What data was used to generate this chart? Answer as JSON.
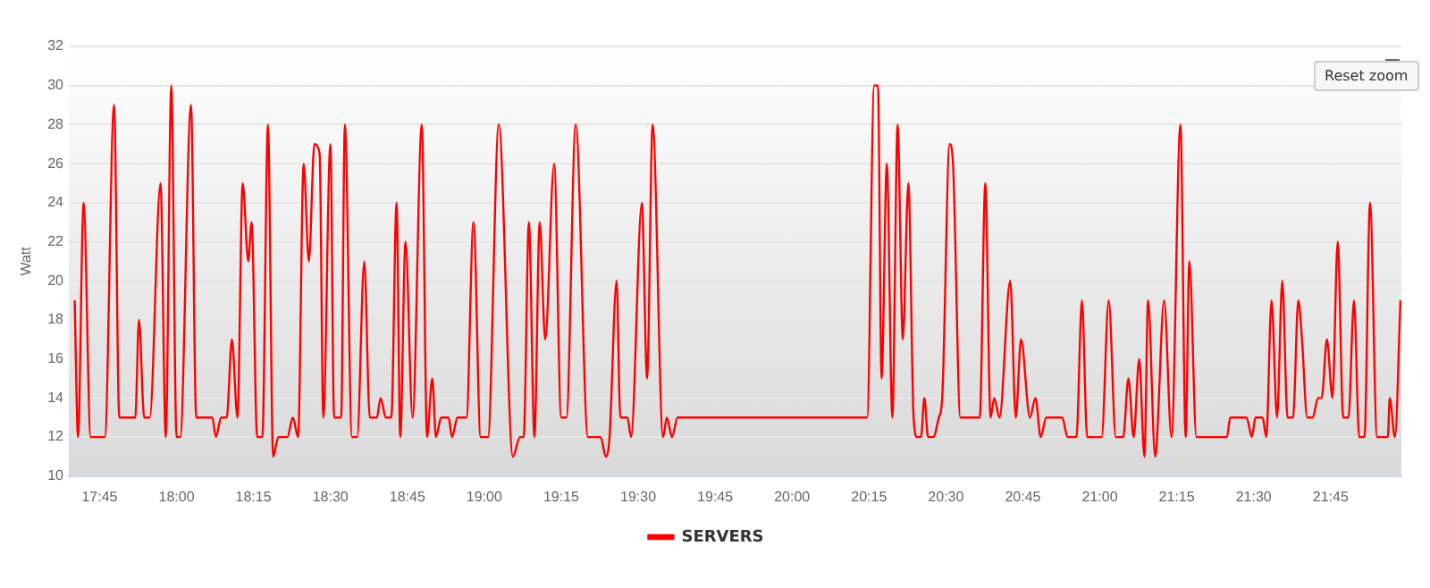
{
  "chart_data": {
    "type": "line",
    "ylabel": "Watt",
    "legend": "bottom",
    "grid": "y",
    "marker": "none",
    "line_style": "solid",
    "annotations": [
      "Reset zoom"
    ],
    "xlim": [
      17.65,
      21.98
    ],
    "ylim": [
      10,
      32
    ],
    "yticks": [
      10,
      12,
      14,
      16,
      18,
      20,
      22,
      24,
      26,
      28,
      30,
      32
    ],
    "xticks": [
      {
        "value": 17.75,
        "label": "17:45"
      },
      {
        "value": 18,
        "label": "18:00"
      },
      {
        "value": 18.25,
        "label": "18:15"
      },
      {
        "value": 18.5,
        "label": "18:30"
      },
      {
        "value": 18.75,
        "label": "18:45"
      },
      {
        "value": 19,
        "label": "19:00"
      },
      {
        "value": 19.25,
        "label": "19:15"
      },
      {
        "value": 19.5,
        "label": "19:30"
      },
      {
        "value": 19.75,
        "label": "19:45"
      },
      {
        "value": 20,
        "label": "20:00"
      },
      {
        "value": 20.25,
        "label": "20:15"
      },
      {
        "value": 20.5,
        "label": "20:30"
      },
      {
        "value": 20.75,
        "label": "20:45"
      },
      {
        "value": 21,
        "label": "21:00"
      },
      {
        "value": 21.25,
        "label": "21:15"
      },
      {
        "value": 21.5,
        "label": "21:30"
      },
      {
        "value": 21.75,
        "label": "21:45"
      }
    ],
    "series": [
      {
        "name": "SERVERS",
        "color": "#ff0000",
        "x": [
          17.669,
          17.68,
          17.698,
          17.721,
          17.767,
          17.797,
          17.814,
          17.866,
          17.878,
          17.895,
          17.913,
          17.948,
          17.965,
          17.983,
          18.0,
          18.012,
          18.047,
          18.064,
          18.116,
          18.128,
          18.145,
          18.163,
          18.18,
          18.198,
          18.215,
          18.233,
          18.244,
          18.262,
          18.279,
          18.297,
          18.314,
          18.331,
          18.36,
          18.378,
          18.395,
          18.413,
          18.43,
          18.448,
          18.465,
          18.477,
          18.5,
          18.512,
          18.535,
          18.547,
          18.57,
          18.587,
          18.61,
          18.628,
          18.651,
          18.663,
          18.68,
          18.698,
          18.715,
          18.727,
          18.744,
          18.767,
          18.797,
          18.814,
          18.831,
          18.843,
          18.86,
          18.884,
          18.895,
          18.913,
          18.942,
          18.965,
          18.988,
          19.012,
          19.047,
          19.093,
          19.116,
          19.128,
          19.145,
          19.163,
          19.18,
          19.198,
          19.227,
          19.25,
          19.267,
          19.297,
          19.337,
          19.378,
          19.395,
          19.407,
          19.43,
          19.442,
          19.465,
          19.477,
          19.512,
          19.529,
          19.547,
          19.581,
          19.593,
          19.61,
          19.628,
          20.244,
          20.267,
          20.279,
          20.291,
          20.308,
          20.326,
          20.343,
          20.36,
          20.378,
          20.395,
          20.407,
          20.419,
          20.43,
          20.442,
          20.459,
          20.477,
          20.488,
          20.512,
          20.523,
          20.547,
          20.61,
          20.628,
          20.645,
          20.657,
          20.674,
          20.709,
          20.727,
          20.744,
          20.773,
          20.791,
          20.808,
          20.826,
          20.878,
          20.895,
          20.924,
          20.942,
          20.959,
          21.006,
          21.029,
          21.052,
          21.076,
          21.093,
          21.11,
          21.128,
          21.145,
          21.157,
          21.18,
          21.186,
          21.209,
          21.233,
          21.262,
          21.279,
          21.291,
          21.314,
          21.413,
          21.424,
          21.477,
          21.494,
          21.506,
          21.529,
          21.541,
          21.558,
          21.576,
          21.593,
          21.61,
          21.628,
          21.645,
          21.657,
          21.674,
          21.692,
          21.709,
          21.721,
          21.738,
          21.756,
          21.773,
          21.791,
          21.808,
          21.826,
          21.843,
          21.86,
          21.878,
          21.901,
          21.936,
          21.942,
          21.959,
          21.977
        ],
        "values": [
          19,
          12,
          24,
          12,
          12,
          29,
          13,
          13,
          18,
          13,
          13,
          25,
          12,
          30,
          12,
          12,
          29,
          13,
          13,
          12,
          13,
          13,
          17,
          13,
          25,
          21,
          23,
          12,
          12,
          28,
          11,
          12,
          12,
          13,
          12,
          26,
          21,
          27,
          26.5,
          13,
          27,
          13,
          13,
          28,
          12,
          12,
          21,
          13,
          13,
          14,
          13,
          13,
          24,
          12,
          22,
          13,
          28,
          12,
          15,
          12,
          13,
          13,
          12,
          13,
          13,
          23,
          12,
          12,
          28,
          11,
          12,
          12,
          23,
          12,
          23,
          17,
          26,
          13,
          13,
          28,
          12,
          12,
          11,
          12,
          20,
          13,
          13,
          12,
          24,
          15,
          28,
          12,
          13,
          12,
          13,
          13,
          30,
          30,
          15,
          26,
          13,
          28,
          17,
          25,
          13,
          12,
          12,
          14,
          12,
          12,
          13,
          14,
          27,
          26,
          13,
          13,
          25,
          13,
          14,
          13,
          20,
          13,
          17,
          13,
          14,
          12,
          13,
          13,
          12,
          12,
          19,
          12,
          12,
          19,
          12,
          12,
          15,
          12,
          16,
          11,
          19,
          11,
          12,
          19,
          12,
          28,
          12,
          21,
          12,
          12,
          13,
          13,
          12,
          13,
          13,
          12,
          19,
          13,
          20,
          13,
          13,
          19,
          17,
          13,
          13,
          14,
          14,
          17,
          14,
          22,
          13,
          13,
          19,
          12,
          12,
          24,
          12,
          12,
          14,
          12,
          19
        ]
      }
    ]
  }
}
